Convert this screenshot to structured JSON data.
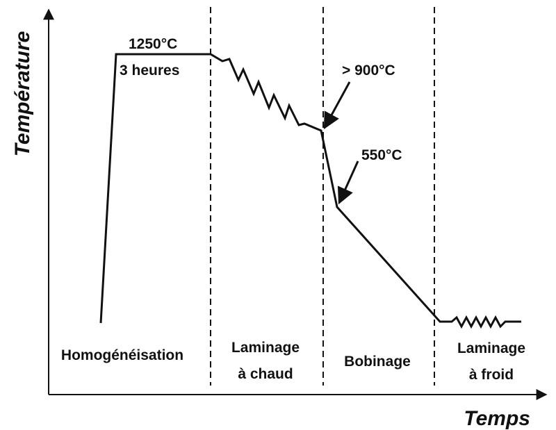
{
  "axes": {
    "y_label": "Température",
    "x_label": "Temps"
  },
  "annotations": {
    "soak_temperature": "1250°C",
    "soak_time": "3 heures",
    "finish_temperature": "> 900°C",
    "coil_temperature": "550°C"
  },
  "phases": [
    {
      "lines": [
        "Homogénéisation"
      ]
    },
    {
      "lines": [
        "Laminage",
        "à chaud"
      ]
    },
    {
      "lines": [
        "Bobinage"
      ]
    },
    {
      "lines": [
        "Laminage",
        "à froid"
      ]
    }
  ]
}
